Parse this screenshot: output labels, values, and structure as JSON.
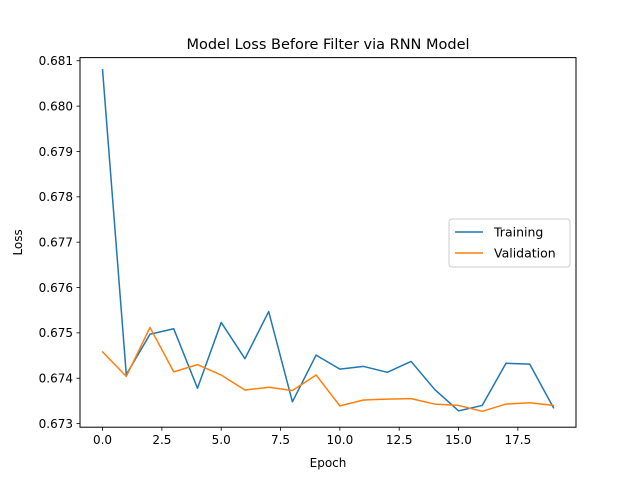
{
  "chart_data": {
    "type": "line",
    "title": "Model Loss Before Filter via RNN Model",
    "xlabel": "Epoch",
    "ylabel": "Loss",
    "xlim": [
      -0.95,
      19.95
    ],
    "ylim": [
      0.67292,
      0.68107
    ],
    "xticks": [
      0.0,
      2.5,
      5.0,
      7.5,
      10.0,
      12.5,
      15.0,
      17.5
    ],
    "xtick_labels": [
      "0.0",
      "2.5",
      "5.0",
      "7.5",
      "10.0",
      "12.5",
      "15.0",
      "17.5"
    ],
    "yticks": [
      0.673,
      0.674,
      0.675,
      0.676,
      0.677,
      0.678,
      0.679,
      0.68,
      0.681
    ],
    "ytick_labels": [
      "0.673",
      "0.674",
      "0.675",
      "0.676",
      "0.677",
      "0.678",
      "0.679",
      "0.680",
      "0.681"
    ],
    "grid": false,
    "legend_position": "center-right",
    "x": [
      0,
      1,
      2,
      3,
      4,
      5,
      6,
      7,
      8,
      9,
      10,
      11,
      12,
      13,
      14,
      15,
      16,
      17,
      18,
      19
    ],
    "series": [
      {
        "name": "Training",
        "color": "#1f77b4",
        "values": [
          0.6808,
          0.67408,
          0.67497,
          0.67509,
          0.67378,
          0.67523,
          0.67443,
          0.67547,
          0.67348,
          0.67451,
          0.6742,
          0.67426,
          0.67413,
          0.67437,
          0.67375,
          0.67328,
          0.6734,
          0.67433,
          0.67431,
          0.67335
        ]
      },
      {
        "name": "Validation",
        "color": "#ff7f0e",
        "values": [
          0.67458,
          0.67404,
          0.67512,
          0.67414,
          0.6743,
          0.67407,
          0.67374,
          0.6738,
          0.67373,
          0.67407,
          0.67339,
          0.67352,
          0.67354,
          0.67355,
          0.67343,
          0.6734,
          0.67327,
          0.67343,
          0.67346,
          0.6734
        ]
      }
    ]
  }
}
